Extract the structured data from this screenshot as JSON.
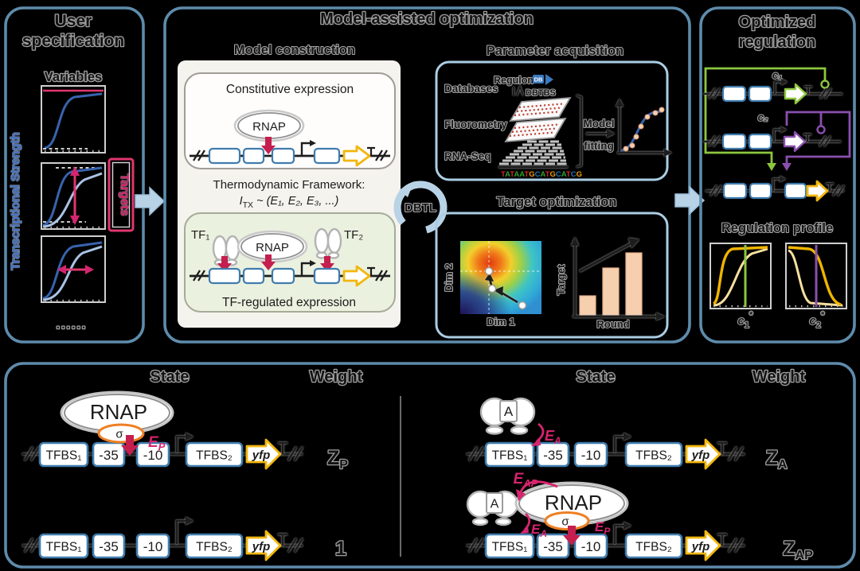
{
  "figure": {
    "type": "scientific-workflow-diagram",
    "background": "#000000"
  },
  "user_spec": {
    "title_line1": "User",
    "title_line2": "specification",
    "variables_label": "Variables",
    "y_axis_label": "Transcriptional Strength",
    "targets_label": "Targets",
    "dots": "......"
  },
  "model_opt": {
    "title": "Model-assisted optimization",
    "construction": {
      "label": "Model construction",
      "constitutive_label": "Constitutive expression",
      "rnap_label": "RNAP",
      "framework_label": "Thermodynamic Framework:",
      "itx_main": "I",
      "itx_sub": "TX",
      "itx_rest": " ~ (E₁, E₂, E₃, ...)",
      "tf1_label": "TF₁",
      "tf2_label": "TF₂",
      "tf_regulated_label": "TF-regulated expression"
    },
    "dbtl_label": "DBTL",
    "parameter_acquisition": {
      "label": "Parameter acquisition",
      "databases_label": "Databases",
      "regulondb_text": "Regulon",
      "regulondb_badge": "DB",
      "dbtbs_text": "DBTBS",
      "fluorometry_label": "Fluorometry",
      "rnaseq_label": "RNA-Seq",
      "sequence": "TATAATGCATGCATCG",
      "model_fitting_line1": "Model",
      "model_fitting_line2": "fitting"
    },
    "target_optimization": {
      "label": "Target optimization",
      "dim1_label": "Dim 1",
      "dim2_label": "Dim 2",
      "target_axis_label": "Target",
      "round_axis_label": "Round"
    }
  },
  "optimized_reg": {
    "title_line1": "Optimized",
    "title_line2": "regulation",
    "c1_label": "c₁",
    "c2_label": "c₂",
    "profile_label": "Regulation profile",
    "c_main": "c",
    "c1_sub": "1",
    "c2_sub": "2",
    "star": "*"
  },
  "states": {
    "state_header": "State",
    "weight_header": "Weight",
    "tfbs1": "TFBS₁",
    "minus35": "-35",
    "minus10": "-10",
    "tfbs2": "TFBS₂",
    "yfp": "yfp",
    "rnap": "RNAP",
    "sigma": "σ",
    "activator": "A",
    "e_main": "E",
    "sub_p": "P",
    "sub_a": "A",
    "sub_ap": "AP",
    "z_main": "Z",
    "weight_one": "1"
  },
  "colors": {
    "panel_border": "#5e8bab",
    "light_blue": "#b9d3e6",
    "gene_box_blue": "#3f7cae",
    "yellow": "#f2b60d",
    "red_arrow": "#c41f4e",
    "pink": "#d6246e",
    "green": "#8cc63e",
    "purple": "#8a4fad",
    "curve_blue": "#3863ae",
    "curve_light_blue": "#a9c3e4",
    "bar_peach": "#f6cfae",
    "sigma_orange": "#ee7f22",
    "axis_blue_label": "#4575c8",
    "sequence_colors": {
      "A": "#2ca02c",
      "T": "#d62728",
      "G": "#f59b00",
      "C": "#1f77b4"
    }
  }
}
